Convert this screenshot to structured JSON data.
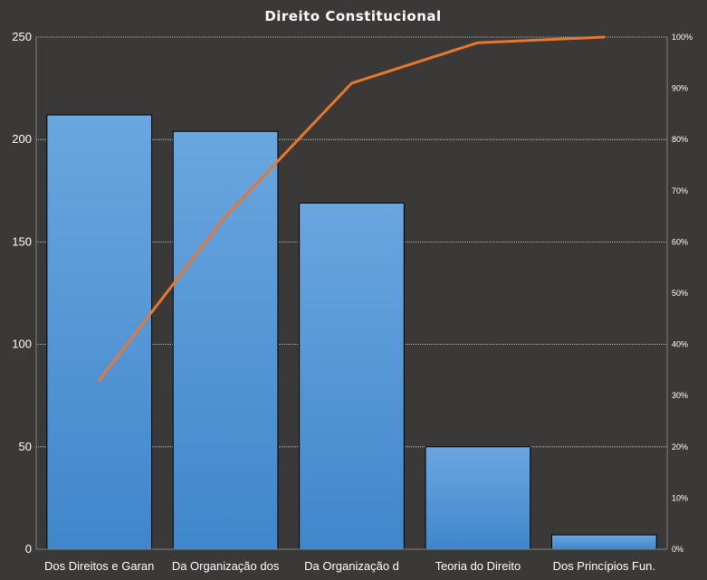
{
  "chart_data": {
    "type": "bar",
    "title": "Direito  Constitucional",
    "categories": [
      "Dos Direitos e Garan",
      "Da Organização dos",
      "Da Organização d",
      "Teoria do Direito",
      "Dos Princípios Fun."
    ],
    "values": [
      212,
      204,
      169,
      50,
      7
    ],
    "line_series": {
      "axis": "right",
      "values": [
        33,
        65,
        91,
        98.9,
        100
      ]
    },
    "ylim": [
      0,
      250
    ],
    "yticks": [
      "0",
      "50",
      "100",
      "150",
      "200",
      "250"
    ],
    "y2lim": [
      0,
      100
    ],
    "y2ticks": [
      "0%",
      "10%",
      "20%",
      "30%",
      "40%",
      "50%",
      "60%",
      "70%",
      "80%",
      "90%",
      "100%"
    ],
    "grid": true,
    "colors": {
      "background": "#3b3838",
      "bar_top": "#6aa6e0",
      "bar_bottom": "#3f87cb",
      "bar_border": "#000000",
      "line": "#e8772e",
      "grid": "#d9d9d9",
      "text": "#ffffff"
    }
  }
}
